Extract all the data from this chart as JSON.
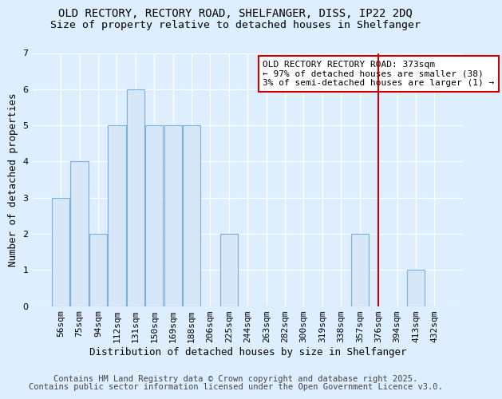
{
  "title1": "OLD RECTORY, RECTORY ROAD, SHELFANGER, DISS, IP22 2DQ",
  "title2": "Size of property relative to detached houses in Shelfanger",
  "xlabel": "Distribution of detached houses by size in Shelfanger",
  "ylabel": "Number of detached properties",
  "bins": [
    "56sqm",
    "75sqm",
    "94sqm",
    "112sqm",
    "131sqm",
    "150sqm",
    "169sqm",
    "188sqm",
    "206sqm",
    "225sqm",
    "244sqm",
    "263sqm",
    "282sqm",
    "300sqm",
    "319sqm",
    "338sqm",
    "357sqm",
    "376sqm",
    "394sqm",
    "413sqm",
    "432sqm"
  ],
  "values": [
    3,
    4,
    2,
    5,
    6,
    5,
    5,
    5,
    0,
    2,
    0,
    0,
    0,
    0,
    0,
    0,
    2,
    0,
    0,
    1,
    0
  ],
  "bar_color": "#d6e8f7",
  "bar_edge_color": "#7ab0d8",
  "vline_x_index": 17,
  "annotation_text": "OLD RECTORY RECTORY ROAD: 373sqm\n← 97% of detached houses are smaller (38)\n3% of semi-detached houses are larger (1) →",
  "annotation_box_color": "#ffffff",
  "annotation_box_edge_color": "#cc0000",
  "vline_color": "#cc0000",
  "ylim": [
    0,
    7
  ],
  "yticks": [
    0,
    1,
    2,
    3,
    4,
    5,
    6,
    7
  ],
  "footer1": "Contains HM Land Registry data © Crown copyright and database right 2025.",
  "footer2": "Contains public sector information licensed under the Open Government Licence v3.0.",
  "bg_color": "#ddeeff",
  "plot_bg_color": "#ddeeff",
  "title_fontsize": 10,
  "subtitle_fontsize": 9.5,
  "axis_label_fontsize": 9,
  "tick_fontsize": 8,
  "annotation_fontsize": 8,
  "footer_fontsize": 7.5
}
